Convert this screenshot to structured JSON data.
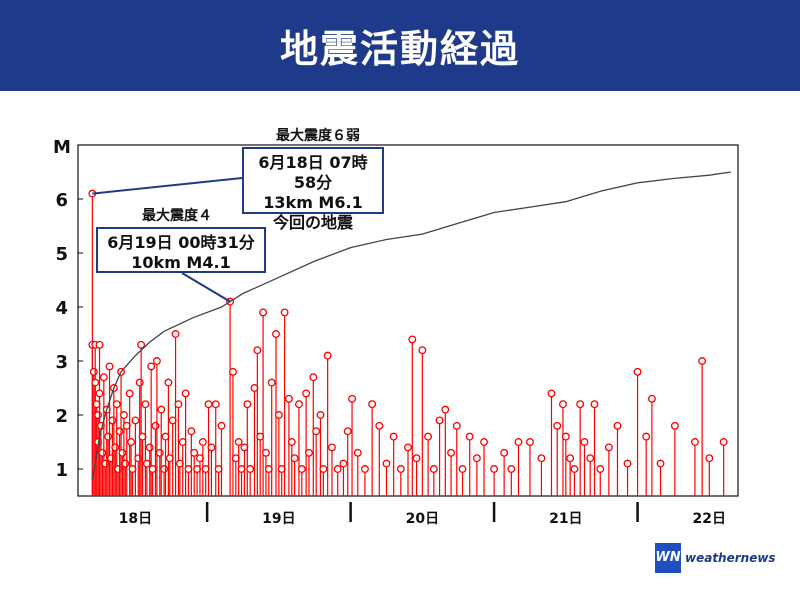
{
  "header": {
    "title": "地震活動経過"
  },
  "annotations": {
    "main": {
      "intensity": "最大震度６弱",
      "line1": "6月18日 07時58分",
      "line2": "13km M6.1",
      "line3": "今回の地震"
    },
    "secondary": {
      "intensity": "最大震度４",
      "line1": "6月19日 00時31分",
      "line2": "10km M4.1"
    }
  },
  "logo": {
    "mark": "WN",
    "text": "weathernews"
  },
  "colors": {
    "header": "#1f3a8a",
    "stem": "#ff0000",
    "cumulative": "#444444"
  },
  "chart_data": {
    "type": "scatter",
    "y_axis_title": "M",
    "yticks": [
      1,
      2,
      3,
      4,
      5,
      6
    ],
    "ylim": [
      0.5,
      7.0
    ],
    "xlim": [
      17.6,
      22.2
    ],
    "xticks": [
      {
        "label": "18日",
        "value": 18
      },
      {
        "label": "19日",
        "value": 19
      },
      {
        "label": "20日",
        "value": 20
      },
      {
        "label": "21日",
        "value": 21
      },
      {
        "label": "22日",
        "value": 22
      }
    ],
    "day_separators": [
      18.5,
      19.5,
      20.5,
      21.5
    ],
    "grid": false,
    "events": [
      {
        "t": 17.7,
        "m": 6.1
      },
      {
        "t": 17.7,
        "m": 3.3
      },
      {
        "t": 17.71,
        "m": 2.8
      },
      {
        "t": 17.72,
        "m": 3.3
      },
      {
        "t": 17.72,
        "m": 2.6
      },
      {
        "t": 17.73,
        "m": 2.2
      },
      {
        "t": 17.74,
        "m": 2.0
      },
      {
        "t": 17.74,
        "m": 1.5
      },
      {
        "t": 17.75,
        "m": 3.3
      },
      {
        "t": 17.75,
        "m": 2.4
      },
      {
        "t": 17.76,
        "m": 1.8
      },
      {
        "t": 17.77,
        "m": 1.3
      },
      {
        "t": 17.78,
        "m": 2.7
      },
      {
        "t": 17.79,
        "m": 1.1
      },
      {
        "t": 17.8,
        "m": 2.1
      },
      {
        "t": 17.81,
        "m": 1.6
      },
      {
        "t": 17.82,
        "m": 2.9
      },
      {
        "t": 17.83,
        "m": 1.2
      },
      {
        "t": 17.84,
        "m": 1.9
      },
      {
        "t": 17.85,
        "m": 2.5
      },
      {
        "t": 17.86,
        "m": 1.4
      },
      {
        "t": 17.87,
        "m": 2.2
      },
      {
        "t": 17.88,
        "m": 1.0
      },
      {
        "t": 17.89,
        "m": 1.7
      },
      {
        "t": 17.9,
        "m": 2.8
      },
      {
        "t": 17.91,
        "m": 1.3
      },
      {
        "t": 17.92,
        "m": 2.0
      },
      {
        "t": 17.93,
        "m": 1.1
      },
      {
        "t": 17.94,
        "m": 1.8
      },
      {
        "t": 17.96,
        "m": 2.4
      },
      {
        "t": 17.97,
        "m": 1.5
      },
      {
        "t": 17.98,
        "m": 1.0
      },
      {
        "t": 18.0,
        "m": 1.9
      },
      {
        "t": 18.02,
        "m": 1.2
      },
      {
        "t": 18.03,
        "m": 2.6
      },
      {
        "t": 18.04,
        "m": 3.3
      },
      {
        "t": 18.05,
        "m": 1.6
      },
      {
        "t": 18.07,
        "m": 2.2
      },
      {
        "t": 18.08,
        "m": 1.1
      },
      {
        "t": 18.1,
        "m": 1.4
      },
      {
        "t": 18.11,
        "m": 2.9
      },
      {
        "t": 18.12,
        "m": 1.0
      },
      {
        "t": 18.14,
        "m": 1.8
      },
      {
        "t": 18.15,
        "m": 3.0
      },
      {
        "t": 18.17,
        "m": 1.3
      },
      {
        "t": 18.18,
        "m": 2.1
      },
      {
        "t": 18.2,
        "m": 1.0
      },
      {
        "t": 18.21,
        "m": 1.6
      },
      {
        "t": 18.23,
        "m": 2.6
      },
      {
        "t": 18.24,
        "m": 1.2
      },
      {
        "t": 18.26,
        "m": 1.9
      },
      {
        "t": 18.28,
        "m": 3.5
      },
      {
        "t": 18.3,
        "m": 2.2
      },
      {
        "t": 18.31,
        "m": 1.1
      },
      {
        "t": 18.33,
        "m": 1.5
      },
      {
        "t": 18.35,
        "m": 2.4
      },
      {
        "t": 18.37,
        "m": 1.0
      },
      {
        "t": 18.39,
        "m": 1.7
      },
      {
        "t": 18.41,
        "m": 1.3
      },
      {
        "t": 18.43,
        "m": 1.0
      },
      {
        "t": 18.45,
        "m": 1.2
      },
      {
        "t": 18.47,
        "m": 1.5
      },
      {
        "t": 18.49,
        "m": 1.0
      },
      {
        "t": 18.51,
        "m": 2.2
      },
      {
        "t": 18.53,
        "m": 1.4
      },
      {
        "t": 18.56,
        "m": 2.2
      },
      {
        "t": 18.58,
        "m": 1.0
      },
      {
        "t": 18.6,
        "m": 1.8
      },
      {
        "t": 18.66,
        "m": 4.1
      },
      {
        "t": 18.68,
        "m": 2.8
      },
      {
        "t": 18.7,
        "m": 1.2
      },
      {
        "t": 18.72,
        "m": 1.5
      },
      {
        "t": 18.74,
        "m": 1.0
      },
      {
        "t": 18.76,
        "m": 1.4
      },
      {
        "t": 18.78,
        "m": 2.2
      },
      {
        "t": 18.8,
        "m": 1.0
      },
      {
        "t": 18.83,
        "m": 2.5
      },
      {
        "t": 18.85,
        "m": 3.2
      },
      {
        "t": 18.87,
        "m": 1.6
      },
      {
        "t": 18.89,
        "m": 3.9
      },
      {
        "t": 18.91,
        "m": 1.3
      },
      {
        "t": 18.93,
        "m": 1.0
      },
      {
        "t": 18.95,
        "m": 2.6
      },
      {
        "t": 18.98,
        "m": 3.5
      },
      {
        "t": 19.0,
        "m": 2.0
      },
      {
        "t": 19.02,
        "m": 1.0
      },
      {
        "t": 19.04,
        "m": 3.9
      },
      {
        "t": 19.07,
        "m": 2.3
      },
      {
        "t": 19.09,
        "m": 1.5
      },
      {
        "t": 19.11,
        "m": 1.2
      },
      {
        "t": 19.14,
        "m": 2.2
      },
      {
        "t": 19.16,
        "m": 1.0
      },
      {
        "t": 19.19,
        "m": 2.4
      },
      {
        "t": 19.21,
        "m": 1.3
      },
      {
        "t": 19.24,
        "m": 2.7
      },
      {
        "t": 19.26,
        "m": 1.7
      },
      {
        "t": 19.29,
        "m": 2.0
      },
      {
        "t": 19.31,
        "m": 1.0
      },
      {
        "t": 19.34,
        "m": 3.1
      },
      {
        "t": 19.37,
        "m": 1.4
      },
      {
        "t": 19.41,
        "m": 1.0
      },
      {
        "t": 19.45,
        "m": 1.1
      },
      {
        "t": 19.48,
        "m": 1.7
      },
      {
        "t": 19.51,
        "m": 2.3
      },
      {
        "t": 19.55,
        "m": 1.3
      },
      {
        "t": 19.6,
        "m": 1.0
      },
      {
        "t": 19.65,
        "m": 2.2
      },
      {
        "t": 19.7,
        "m": 1.8
      },
      {
        "t": 19.75,
        "m": 1.1
      },
      {
        "t": 19.8,
        "m": 1.6
      },
      {
        "t": 19.85,
        "m": 1.0
      },
      {
        "t": 19.9,
        "m": 1.4
      },
      {
        "t": 19.93,
        "m": 3.4
      },
      {
        "t": 19.96,
        "m": 1.2
      },
      {
        "t": 20.0,
        "m": 3.2
      },
      {
        "t": 20.04,
        "m": 1.6
      },
      {
        "t": 20.08,
        "m": 1.0
      },
      {
        "t": 20.12,
        "m": 1.9
      },
      {
        "t": 20.16,
        "m": 2.1
      },
      {
        "t": 20.2,
        "m": 1.3
      },
      {
        "t": 20.24,
        "m": 1.8
      },
      {
        "t": 20.28,
        "m": 1.0
      },
      {
        "t": 20.33,
        "m": 1.6
      },
      {
        "t": 20.38,
        "m": 1.2
      },
      {
        "t": 20.43,
        "m": 1.5
      },
      {
        "t": 20.5,
        "m": 1.0
      },
      {
        "t": 20.57,
        "m": 1.3
      },
      {
        "t": 20.62,
        "m": 1.0
      },
      {
        "t": 20.67,
        "m": 1.5
      },
      {
        "t": 20.75,
        "m": 1.5
      },
      {
        "t": 20.83,
        "m": 1.2
      },
      {
        "t": 20.9,
        "m": 2.4
      },
      {
        "t": 20.94,
        "m": 1.8
      },
      {
        "t": 20.98,
        "m": 2.2
      },
      {
        "t": 21.0,
        "m": 1.6
      },
      {
        "t": 21.03,
        "m": 1.2
      },
      {
        "t": 21.06,
        "m": 1.0
      },
      {
        "t": 21.1,
        "m": 2.2
      },
      {
        "t": 21.13,
        "m": 1.5
      },
      {
        "t": 21.17,
        "m": 1.2
      },
      {
        "t": 21.2,
        "m": 2.2
      },
      {
        "t": 21.24,
        "m": 1.0
      },
      {
        "t": 21.3,
        "m": 1.4
      },
      {
        "t": 21.36,
        "m": 1.8
      },
      {
        "t": 21.43,
        "m": 1.1
      },
      {
        "t": 21.5,
        "m": 2.8
      },
      {
        "t": 21.56,
        "m": 1.6
      },
      {
        "t": 21.6,
        "m": 2.3
      },
      {
        "t": 21.66,
        "m": 1.1
      },
      {
        "t": 21.76,
        "m": 1.8
      },
      {
        "t": 21.9,
        "m": 1.5
      },
      {
        "t": 21.95,
        "m": 3.0
      },
      {
        "t": 22.0,
        "m": 1.2
      },
      {
        "t": 22.1,
        "m": 1.5
      }
    ],
    "cumulative_curve": [
      {
        "t": 17.7,
        "y": 0.8
      },
      {
        "t": 17.75,
        "y": 1.6
      },
      {
        "t": 17.8,
        "y": 2.1
      },
      {
        "t": 17.85,
        "y": 2.5
      },
      {
        "t": 17.9,
        "y": 2.8
      },
      {
        "t": 18.0,
        "y": 3.1
      },
      {
        "t": 18.1,
        "y": 3.35
      },
      {
        "t": 18.2,
        "y": 3.55
      },
      {
        "t": 18.4,
        "y": 3.8
      },
      {
        "t": 18.6,
        "y": 4.0
      },
      {
        "t": 18.75,
        "y": 4.25
      },
      {
        "t": 19.0,
        "y": 4.55
      },
      {
        "t": 19.25,
        "y": 4.85
      },
      {
        "t": 19.5,
        "y": 5.1
      },
      {
        "t": 19.75,
        "y": 5.25
      },
      {
        "t": 20.0,
        "y": 5.35
      },
      {
        "t": 20.25,
        "y": 5.55
      },
      {
        "t": 20.5,
        "y": 5.75
      },
      {
        "t": 20.75,
        "y": 5.85
      },
      {
        "t": 21.0,
        "y": 5.95
      },
      {
        "t": 21.25,
        "y": 6.15
      },
      {
        "t": 21.5,
        "y": 6.3
      },
      {
        "t": 21.75,
        "y": 6.38
      },
      {
        "t": 22.0,
        "y": 6.44
      },
      {
        "t": 22.15,
        "y": 6.5
      }
    ]
  }
}
